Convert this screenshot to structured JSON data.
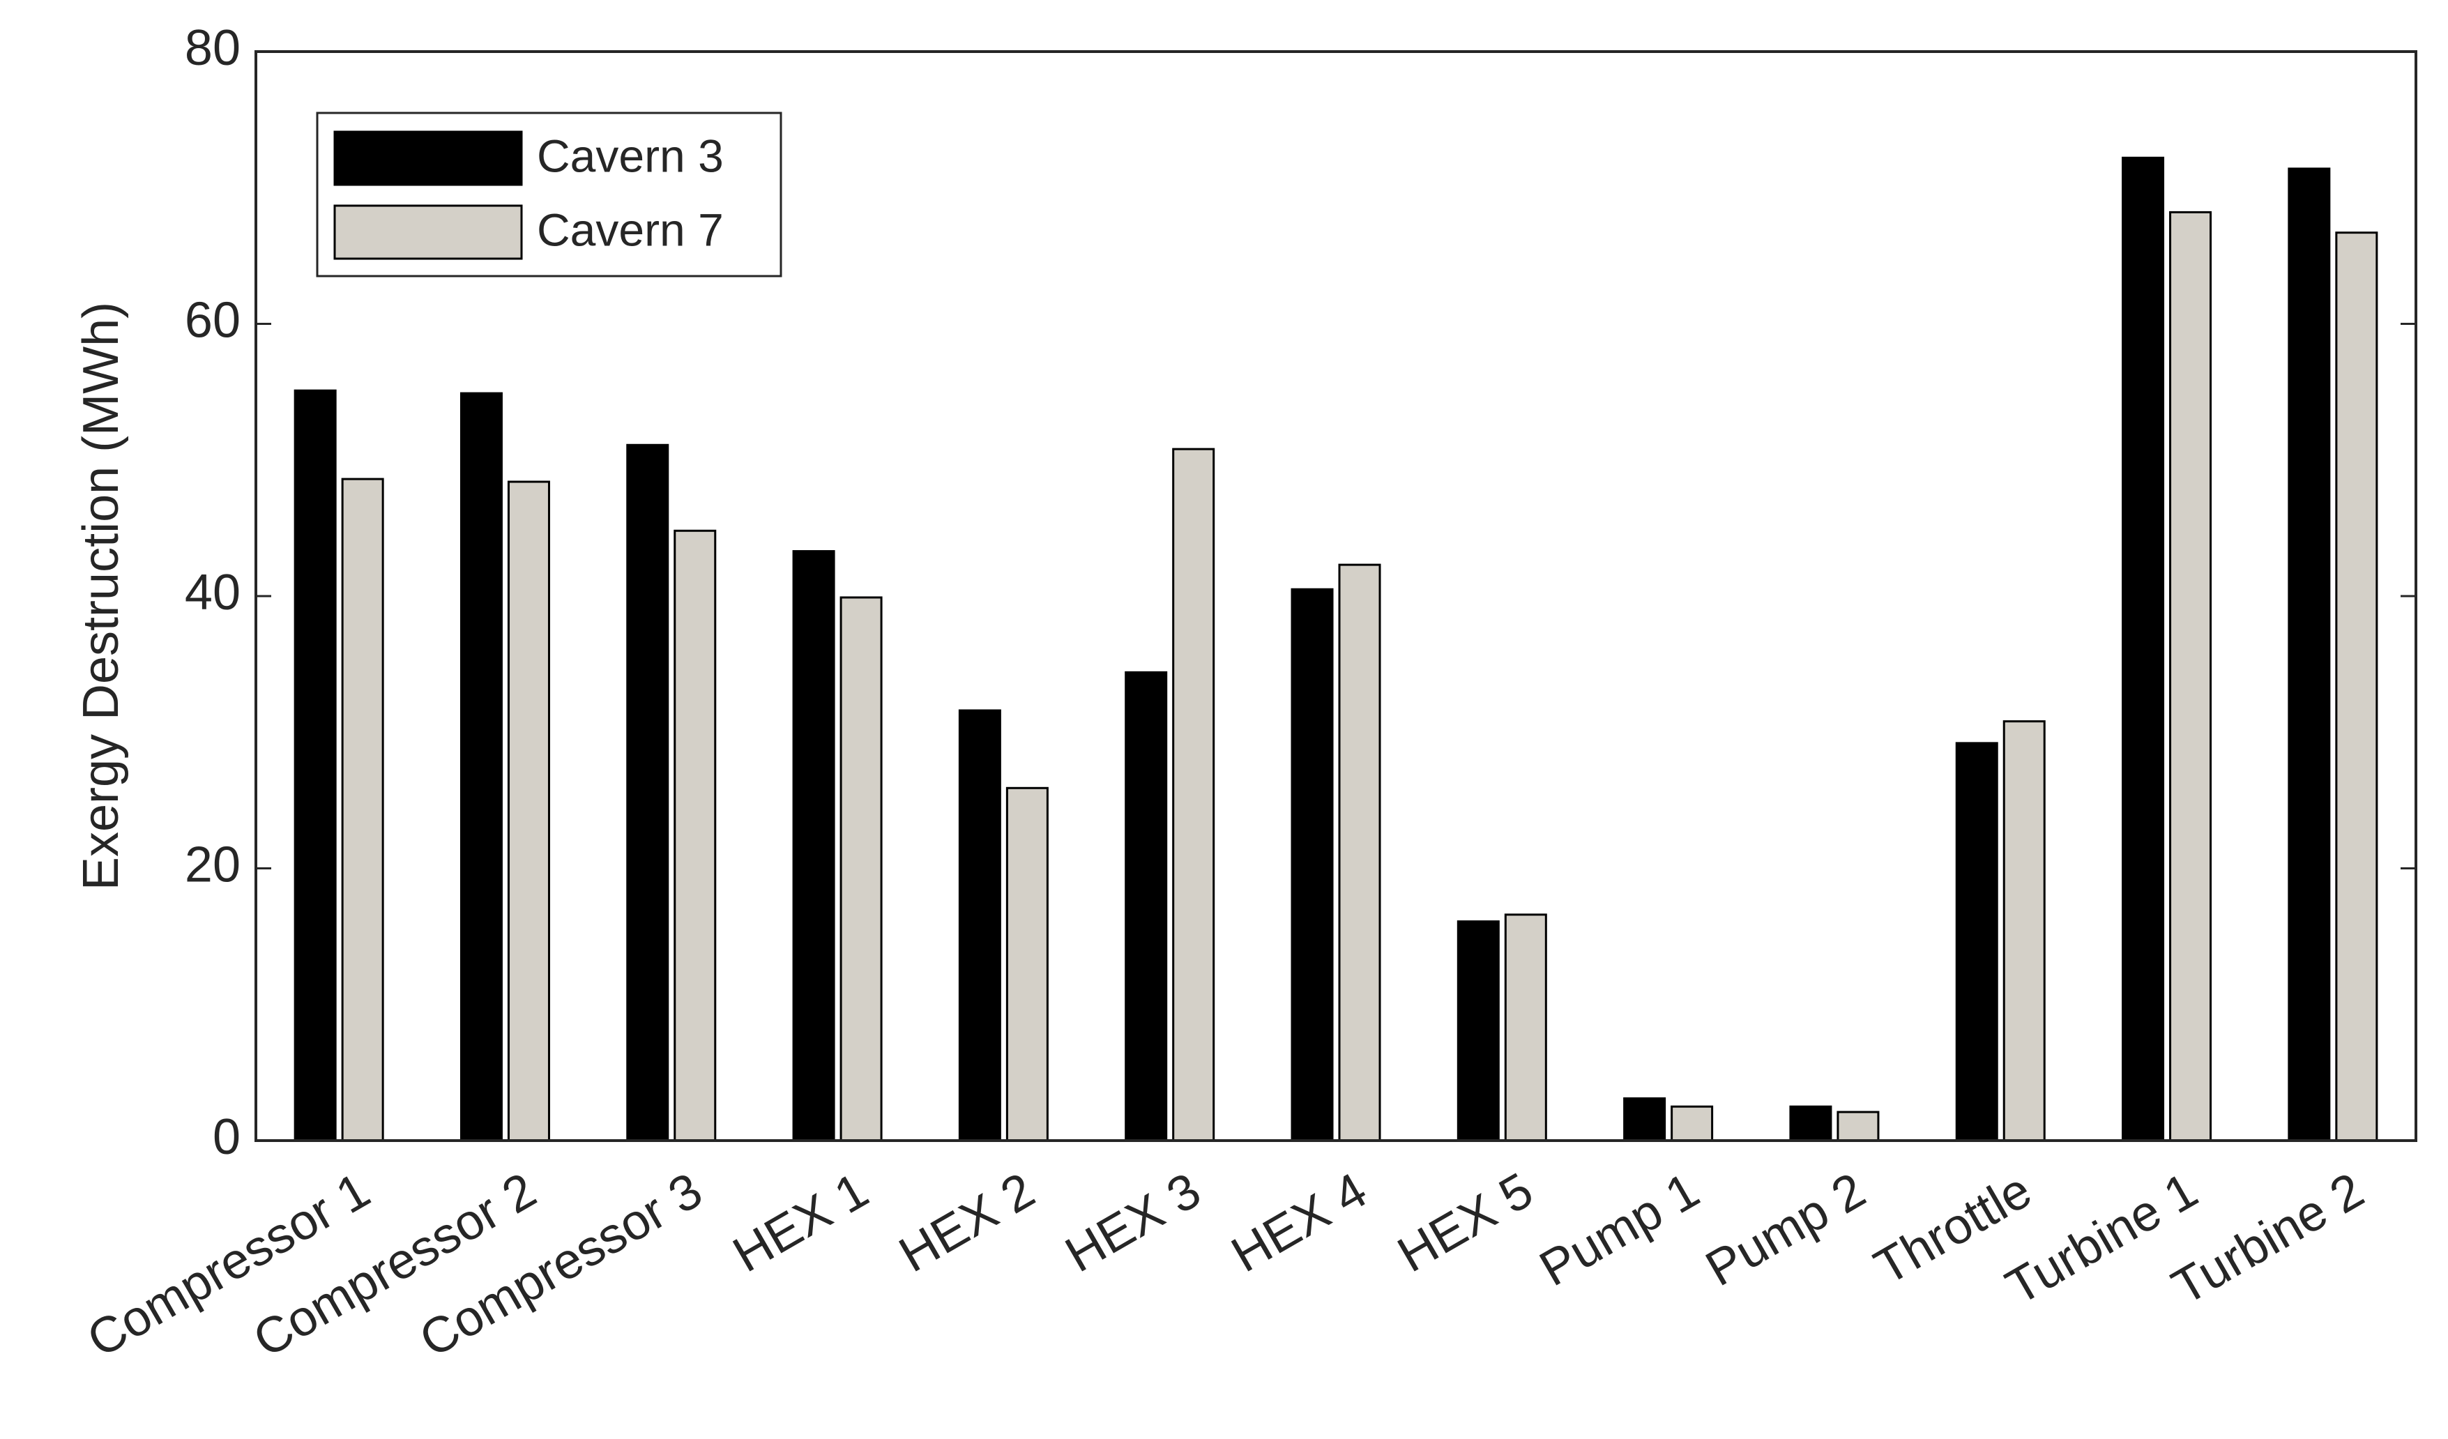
{
  "chart_data": {
    "type": "bar",
    "ylabel": "Exergy Destruction (MWh)",
    "categories": [
      "Compressor 1",
      "Compressor 2",
      "Compressor 3",
      "HEX 1",
      "HEX 2",
      "HEX 3",
      "HEX 4",
      "HEX 5",
      "Pump 1",
      "Pump 2",
      "Throttle",
      "Turbine 1",
      "Turbine 2"
    ],
    "series": [
      {
        "name": "Cavern 3",
        "color": "#000000",
        "values": [
          55.1,
          54.9,
          51.1,
          43.3,
          31.6,
          34.4,
          40.5,
          16.1,
          3.1,
          2.5,
          29.2,
          72.2,
          71.4
        ]
      },
      {
        "name": "Cavern 7",
        "color": "#d4d0c8",
        "values": [
          48.6,
          48.4,
          44.8,
          39.9,
          25.9,
          50.8,
          42.3,
          16.6,
          2.5,
          2.1,
          30.8,
          68.2,
          66.7
        ]
      }
    ],
    "ylim": [
      0,
      80
    ],
    "yticks": [
      0,
      20,
      40,
      60,
      80
    ],
    "legend": "upper-left"
  }
}
